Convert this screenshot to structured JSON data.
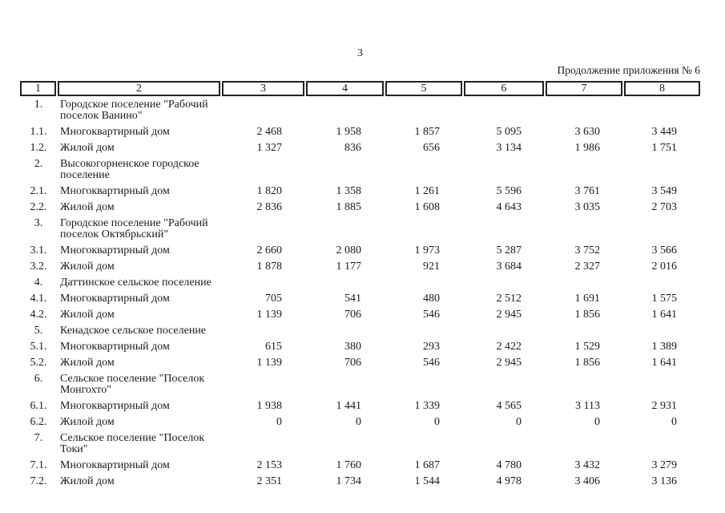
{
  "page": {
    "page_number": "3",
    "continuation_note": "Продолжение приложения № 6"
  },
  "table": {
    "column_numbers": [
      "1",
      "2",
      "3",
      "4",
      "5",
      "6",
      "7",
      "8"
    ],
    "rows": [
      {
        "num": "1.",
        "name": "Городское поселение \"Рабочий поселок Ванино\"",
        "values": [
          "",
          "",
          "",
          "",
          "",
          ""
        ]
      },
      {
        "num": "1.1.",
        "name": "Многоквартирный дом",
        "values": [
          "2 468",
          "1 958",
          "1 857",
          "5 095",
          "3 630",
          "3 449"
        ]
      },
      {
        "num": "1.2.",
        "name": "Жилой дом",
        "values": [
          "1 327",
          "836",
          "656",
          "3 134",
          "1 986",
          "1 751"
        ]
      },
      {
        "num": "2.",
        "name": "Высокогорненское городское поселение",
        "values": [
          "",
          "",
          "",
          "",
          "",
          ""
        ]
      },
      {
        "num": "2.1.",
        "name": "Многоквартирный дом",
        "values": [
          "1 820",
          "1 358",
          "1 261",
          "5 596",
          "3 761",
          "3 549"
        ]
      },
      {
        "num": "2.2.",
        "name": "Жилой дом",
        "values": [
          "2 836",
          "1 885",
          "1 608",
          "4 643",
          "3 035",
          "2 703"
        ]
      },
      {
        "num": "3.",
        "name": "Городское поселение \"Рабочий поселок Октябрьский\"",
        "values": [
          "",
          "",
          "",
          "",
          "",
          ""
        ]
      },
      {
        "num": "3.1.",
        "name": "Многоквартирный дом",
        "values": [
          "2 660",
          "2 080",
          "1 973",
          "5 287",
          "3 752",
          "3 566"
        ]
      },
      {
        "num": "3.2.",
        "name": "Жилой дом",
        "values": [
          "1 878",
          "1 177",
          "921",
          "3 684",
          "2 327",
          "2 016"
        ]
      },
      {
        "num": "4.",
        "name": "Даттинское сельское поселение",
        "values": [
          "",
          "",
          "",
          "",
          "",
          ""
        ]
      },
      {
        "num": "4.1.",
        "name": "Многоквартирный дом",
        "values": [
          "705",
          "541",
          "480",
          "2 512",
          "1 691",
          "1 575"
        ]
      },
      {
        "num": "4.2.",
        "name": "Жилой дом",
        "values": [
          "1 139",
          "706",
          "546",
          "2 945",
          "1 856",
          "1 641"
        ]
      },
      {
        "num": "5.",
        "name": "Кенадское сельское поселение",
        "values": [
          "",
          "",
          "",
          "",
          "",
          ""
        ]
      },
      {
        "num": "5.1.",
        "name": "Многоквартирный дом",
        "values": [
          "615",
          "380",
          "293",
          "2 422",
          "1 529",
          "1 389"
        ]
      },
      {
        "num": "5.2.",
        "name": "Жилой дом",
        "values": [
          "1 139",
          "706",
          "546",
          "2 945",
          "1 856",
          "1 641"
        ]
      },
      {
        "num": "6.",
        "name": "Сельское поселение \"Поселок Монгохто\"",
        "values": [
          "",
          "",
          "",
          "",
          "",
          ""
        ]
      },
      {
        "num": "6.1.",
        "name": "Многоквартирный дом",
        "values": [
          "1 938",
          "1 441",
          "1 339",
          "4 565",
          "3 113",
          "2 931"
        ]
      },
      {
        "num": "6.2.",
        "name": "Жилой дом",
        "values": [
          "0",
          "0",
          "0",
          "0",
          "0",
          "0"
        ]
      },
      {
        "num": "7.",
        "name": "Сельское поселение \"Поселок Токи\"",
        "values": [
          "",
          "",
          "",
          "",
          "",
          ""
        ]
      },
      {
        "num": "7.1.",
        "name": "Многоквартирный дом",
        "values": [
          "2 153",
          "1 760",
          "1 687",
          "4 780",
          "3 432",
          "3 279"
        ]
      },
      {
        "num": "7.2.",
        "name": "Жилой дом",
        "values": [
          "2 351",
          "1 734",
          "1 544",
          "4 978",
          "3 406",
          "3 136"
        ]
      }
    ]
  }
}
